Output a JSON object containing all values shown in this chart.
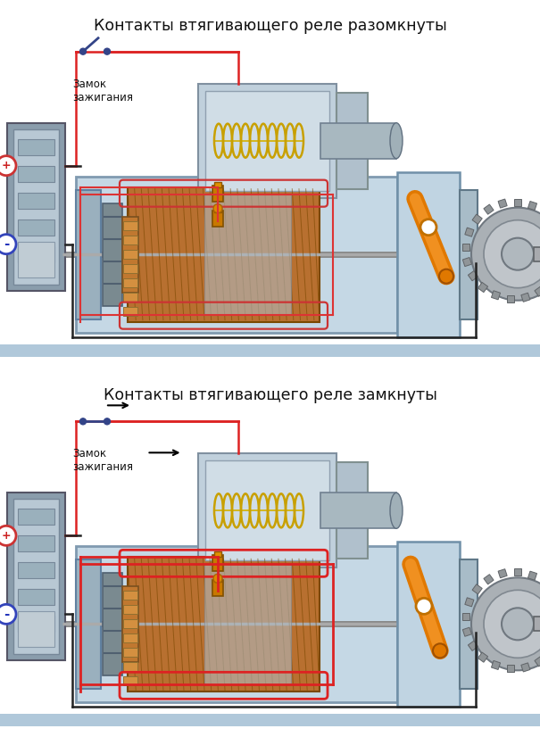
{
  "title1": "Контакты втягивающего реле разомкнуты",
  "title2": "Контакты втягивающего реле замкнуты",
  "label_zamok": "Замок\nзажигания",
  "bg_color": "#ffffff",
  "separator_color": "#b8ccd8",
  "title_fontsize": 12.5,
  "label_fontsize": 8.5,
  "fig_width": 6.05,
  "fig_height": 8.26,
  "dpi": 100
}
